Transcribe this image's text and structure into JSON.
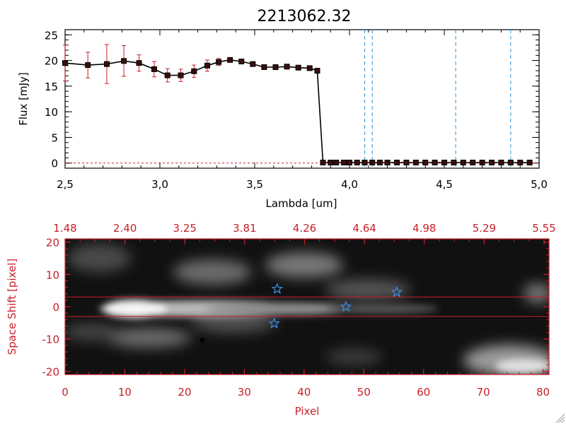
{
  "title": "2213062.32",
  "colors": {
    "axis_red": "#c8202a",
    "errbar": "#c8202a",
    "marker_fill": "#3a0d0d",
    "vline": "#2a8fd6",
    "star": "#3a8ae0"
  },
  "chart_data": [
    {
      "type": "line",
      "title": "2213062.32",
      "xlabel": "Lambda [um]",
      "ylabel": "Flux [mJy]",
      "xlim": [
        2.5,
        5.0
      ],
      "ylim": [
        -1,
        26
      ],
      "xticks": [
        "2.5",
        "3.0",
        "3.5",
        "4.0",
        "4.5",
        "5.0"
      ],
      "yticks": [
        "0",
        "5",
        "10",
        "15",
        "20",
        "25"
      ],
      "series": [
        {
          "name": "flux",
          "x": [
            2.5,
            2.62,
            2.72,
            2.81,
            2.89,
            2.97,
            3.04,
            3.11,
            3.18,
            3.25,
            3.31,
            3.37,
            3.43,
            3.49,
            3.55,
            3.61,
            3.67,
            3.73,
            3.79,
            3.83,
            3.86,
            3.9,
            3.93,
            3.97,
            4.0,
            4.04,
            4.08,
            4.12,
            4.16,
            4.2,
            4.25,
            4.3,
            4.35,
            4.4,
            4.45,
            4.5,
            4.55,
            4.6,
            4.65,
            4.7,
            4.75,
            4.8,
            4.85,
            4.9,
            4.95
          ],
          "y": [
            19.5,
            19.1,
            19.3,
            19.9,
            19.5,
            18.3,
            17.1,
            17.1,
            17.9,
            19.0,
            19.7,
            20.1,
            19.8,
            19.3,
            18.7,
            18.7,
            18.8,
            18.6,
            18.5,
            18.0,
            0.1,
            0.1,
            0.1,
            0.1,
            0.1,
            0.1,
            0.1,
            0.1,
            0.1,
            0.1,
            0.1,
            0.1,
            0.1,
            0.1,
            0.1,
            0.1,
            0.1,
            0.1,
            0.1,
            0.1,
            0.1,
            0.1,
            0.1,
            0.1,
            0.1
          ],
          "err": [
            3.5,
            2.5,
            3.8,
            3.0,
            1.6,
            1.5,
            1.3,
            1.2,
            1.2,
            1.1,
            0.7,
            0.3,
            0.2,
            0.2,
            0.2,
            0.2,
            0.2,
            0.2,
            0.2,
            0.2,
            0.2,
            0.2,
            0.2,
            0.2,
            0.2,
            0.2,
            0.2,
            0.2,
            0.2,
            0.2,
            0.2,
            0.2,
            0.2,
            0.2,
            0.2,
            0.2,
            0.2,
            0.2,
            0.2,
            0.2,
            0.2,
            0.2,
            0.2,
            0.2,
            0.2
          ]
        }
      ],
      "vlines": [
        4.08,
        4.12,
        4.56,
        4.85
      ]
    },
    {
      "type": "heatmap",
      "xlabel": "Pixel",
      "ylabel": "Space Shift [pixel]",
      "xlim": [
        0,
        81
      ],
      "ylim": [
        -21,
        21
      ],
      "xticks": [
        "0",
        "10",
        "20",
        "30",
        "40",
        "50",
        "60",
        "70",
        "80"
      ],
      "yticks": [
        "-20",
        "-10",
        "0",
        "10",
        "20"
      ],
      "top_axis_ticks": [
        "1.48",
        "2.40",
        "3.25",
        "3.81",
        "4.26",
        "4.64",
        "4.98",
        "5.29",
        "5.55"
      ],
      "aperture_lines": [
        3,
        -3
      ],
      "stars": [
        {
          "x": 35.5,
          "y": 5.5
        },
        {
          "x": 35.0,
          "y": -5.2
        },
        {
          "x": 47.0,
          "y": 0.0
        },
        {
          "x": 55.5,
          "y": 4.5
        }
      ]
    }
  ]
}
